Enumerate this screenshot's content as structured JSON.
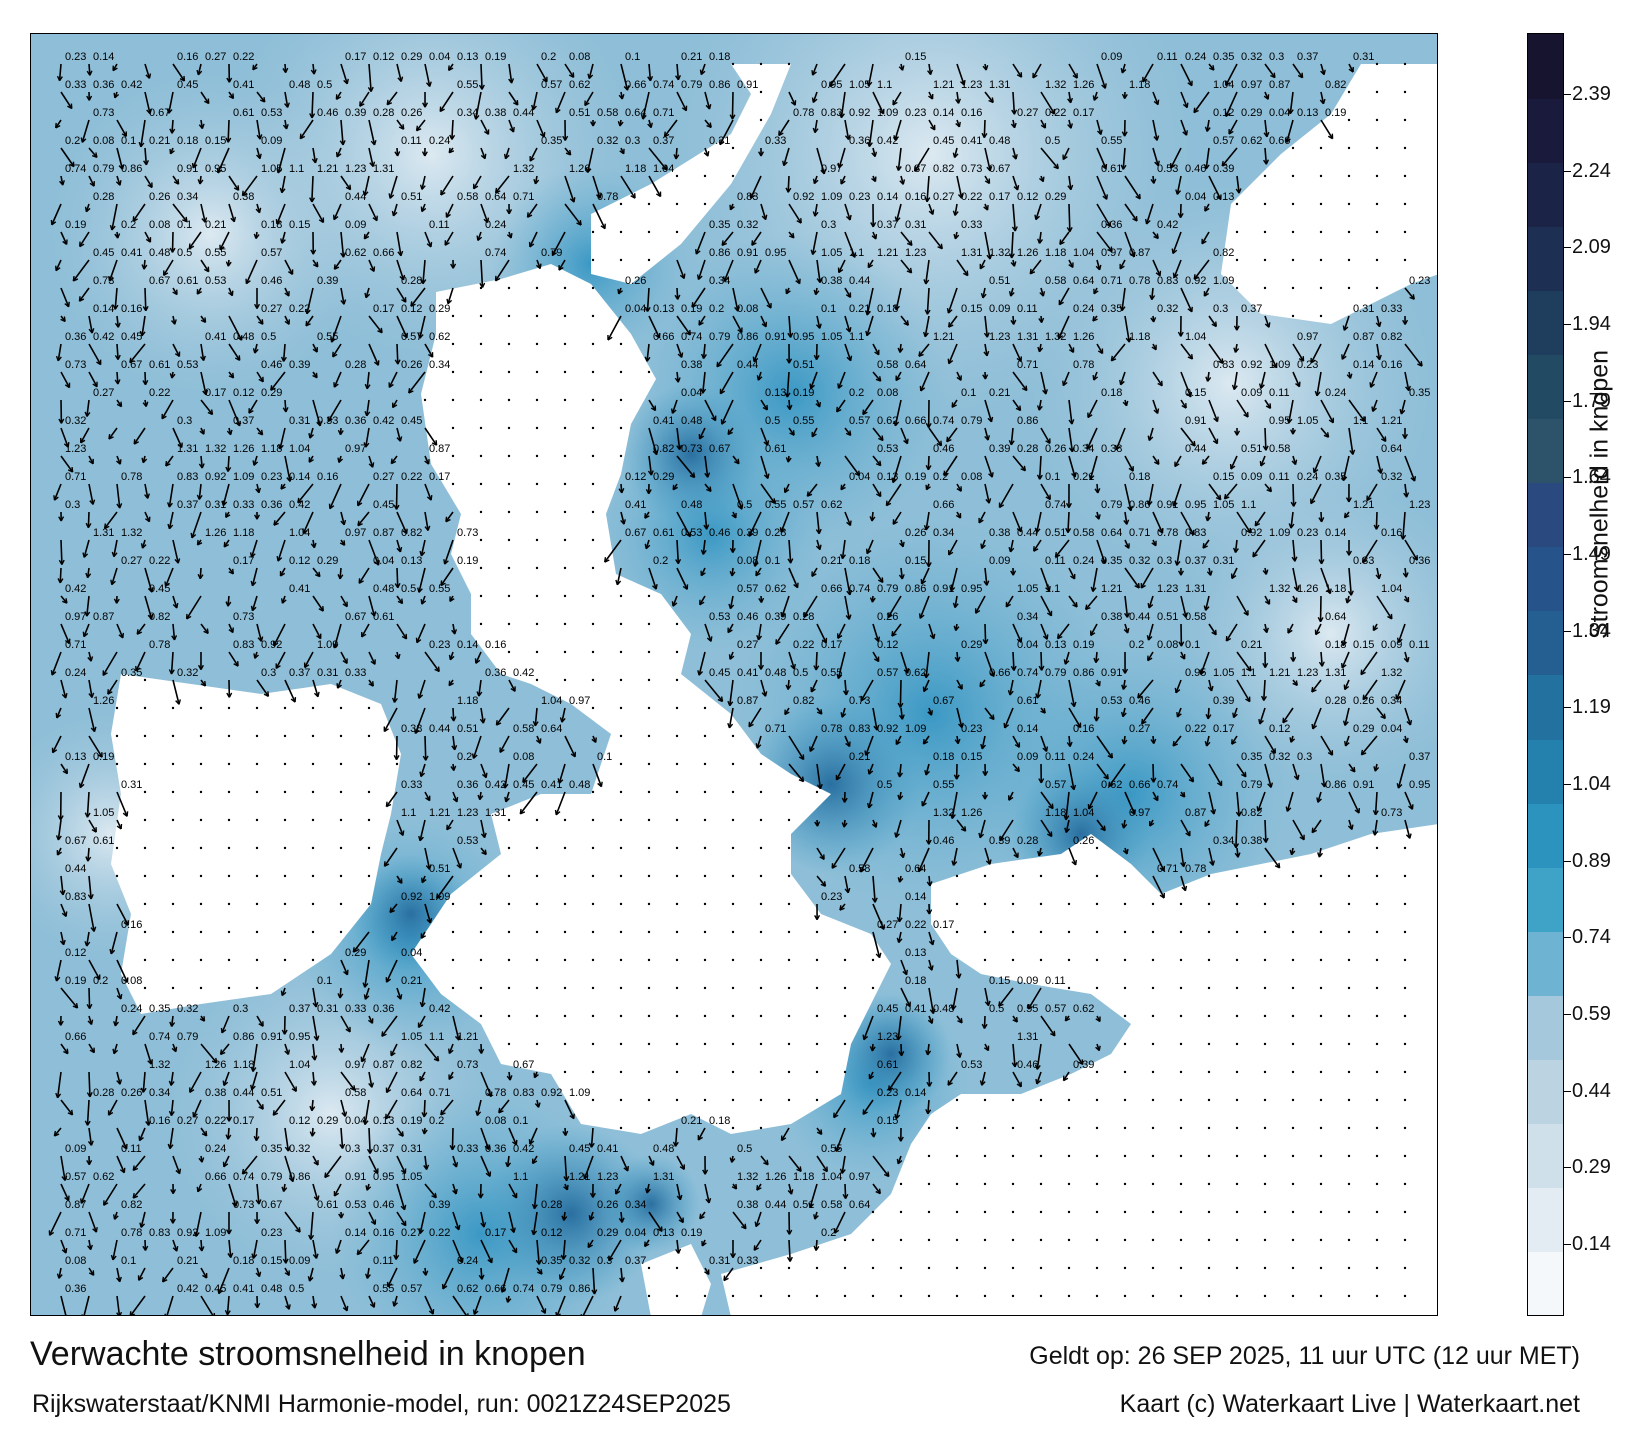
{
  "map": {
    "unit": "knopen",
    "land_color": "#ffffff",
    "arrow_color": "#000000",
    "current_speed_samples": [
      "0.23",
      "0.14",
      "0.16",
      "0.27",
      "0.22",
      "0.17",
      "0.12",
      "0.29",
      "0.04",
      "0.13",
      "0.19",
      "0.2",
      "0.08",
      "0.1",
      "0.21",
      "0.18",
      "0.15",
      "0.09",
      "0.11",
      "0.24",
      "0.35",
      "0.32",
      "0.3",
      "0.37",
      "0.31",
      "0.33",
      "0.36",
      "0.42",
      "0.45",
      "0.41",
      "0.48",
      "0.5",
      "0.55",
      "0.57",
      "0.62",
      "0.66",
      "0.74",
      "0.79",
      "0.86",
      "0.91",
      "0.95",
      "1.05",
      "1.1",
      "1.21",
      "1.23",
      "1.31",
      "1.32",
      "1.26",
      "1.18",
      "1.04",
      "0.97",
      "0.87",
      "0.82",
      "0.73",
      "0.67",
      "0.61",
      "0.53",
      "0.46",
      "0.39",
      "0.28",
      "0.26",
      "0.34",
      "0.38",
      "0.44",
      "0.51",
      "0.58",
      "0.64",
      "0.71",
      "0.78",
      "0.83",
      "0.92",
      "1.09"
    ]
  },
  "colorbar": {
    "label": "Stroomsnelheid in knopen",
    "ticks": [
      "2.39",
      "2.24",
      "2.09",
      "1.94",
      "1.79",
      "1.64",
      "1.49",
      "1.34",
      "1.19",
      "1.04",
      "0.89",
      "0.74",
      "0.59",
      "0.44",
      "0.29",
      "0.14"
    ],
    "colors": [
      "#f4f8fb",
      "#e2ecf2",
      "#cfe0ea",
      "#bcd4e2",
      "#a6c8dc",
      "#6fb3d2",
      "#3fa3c8",
      "#2b93bd",
      "#2481ad",
      "#23719f",
      "#255f92",
      "#26538a",
      "#2a4a7f",
      "#2c5369",
      "#234a63",
      "#1f3d5c",
      "#1d2f52",
      "#1b2447",
      "#1a1a3c",
      "#16142f"
    ]
  },
  "footer": {
    "title": "Verwachte stroomsnelheid in knopen",
    "valid": "Geldt op: 26 SEP 2025, 11 uur UTC (12 uur MET)",
    "model": "Rijkswaterstaat/KNMI Harmonie-model, run: 0021Z24SEP2025",
    "credit": "Kaart (c) Waterkaart Live | Waterkaart.net"
  }
}
